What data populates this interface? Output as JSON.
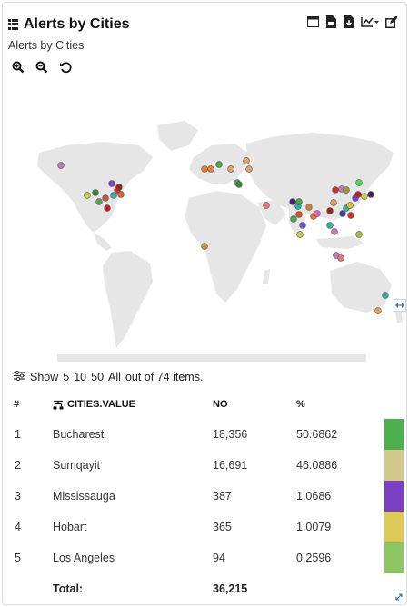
{
  "header": {
    "title": "Alerts by Cities",
    "subtitle": "Alerts by Cities"
  },
  "toolbar": {
    "icons": [
      "window-icon",
      "save-csv-icon",
      "download-icon",
      "chart-type-icon",
      "edit-icon"
    ]
  },
  "zoom": {
    "icons": [
      "zoom-in-icon",
      "zoom-out-icon",
      "reset-icon"
    ]
  },
  "map": {
    "marker_colors": [
      "#d0504a",
      "#e8803a",
      "#4aa84a",
      "#8a44c8",
      "#c8c84a",
      "#e060c0",
      "#3ab0a0",
      "#a0a0d0"
    ]
  },
  "pager": {
    "show_label": "Show",
    "options": [
      "5",
      "10",
      "50",
      "All"
    ],
    "summary": "out of 74 items."
  },
  "table": {
    "columns": {
      "index": "#",
      "city": "CITIES.VALUE",
      "no": "NO",
      "pct": "%"
    },
    "rows": [
      {
        "index": "1",
        "city": "Bucharest",
        "no": "18,356",
        "pct": "50.6862",
        "color": "#4caf50"
      },
      {
        "index": "2",
        "city": "Sumqayit",
        "no": "16,691",
        "pct": "46.0886",
        "color": "#d3c98a"
      },
      {
        "index": "3",
        "city": "Mississauga",
        "no": "387",
        "pct": "1.0686",
        "color": "#7b3fc4"
      },
      {
        "index": "4",
        "city": "Hobart",
        "no": "365",
        "pct": "1.0079",
        "color": "#dcc95a"
      },
      {
        "index": "5",
        "city": "Los Angeles",
        "no": "94",
        "pct": "0.2596",
        "color": "#8cc764"
      }
    ],
    "total": {
      "label": "Total:",
      "no": "36,215"
    }
  }
}
